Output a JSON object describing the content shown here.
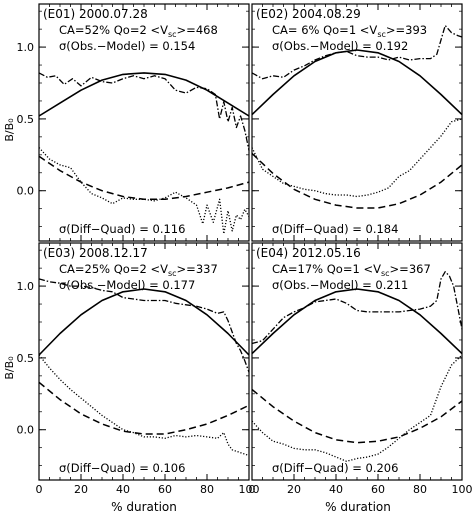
{
  "figure": {
    "ylabel": "B/B₀",
    "xlabel": "% duration",
    "x_ticks": [
      "0",
      "20",
      "40",
      "60",
      "80",
      "100"
    ],
    "y_ticks": [
      "0.0",
      "0.5",
      "1.0"
    ]
  },
  "panels": [
    {
      "event_id": "(E01)",
      "date": "2000.07.28",
      "ca": "CA=52%",
      "qo": "Qo=2",
      "vsc_prefix": "<V",
      "vsc_sub": "sc",
      "vsc_value": ">=468",
      "sigma_obs_label": "σ(Obs.−Model) = 0.154",
      "sigma_diff_label": "σ(Diff−Quad) = 0.116"
    },
    {
      "event_id": "(E02)",
      "date": "2004.08.29",
      "ca": "CA= 6%",
      "qo": "Qo=1",
      "vsc_prefix": "<V",
      "vsc_sub": "sc",
      "vsc_value": ">=393",
      "sigma_obs_label": "σ(Obs.−Model) = 0.192",
      "sigma_diff_label": "σ(Diff−Quad) = 0.184"
    },
    {
      "event_id": "(E03)",
      "date": "2008.12.17",
      "ca": "CA=25%",
      "qo": "Qo=2",
      "vsc_prefix": "<V",
      "vsc_sub": "sc",
      "vsc_value": ">=337",
      "sigma_obs_label": "σ(Obs.−Model) = 0.177",
      "sigma_diff_label": "σ(Diff−Quad) = 0.106"
    },
    {
      "event_id": "(E04)",
      "date": "2012.05.16",
      "ca": "CA=17%",
      "qo": "Qo=1",
      "vsc_prefix": "<V",
      "vsc_sub": "sc",
      "vsc_value": ">=367",
      "sigma_obs_label": "σ(Obs.−Model) = 0.211",
      "sigma_diff_label": "σ(Diff−Quad) = 0.206"
    }
  ],
  "chart_data": {
    "type": "line",
    "xlim": [
      0,
      100
    ],
    "ylim": [
      -0.35,
      1.3
    ],
    "panels": [
      {
        "model_solid": {
          "x": [
            0,
            10,
            20,
            30,
            40,
            50,
            60,
            70,
            80,
            90,
            100
          ],
          "y": [
            0.52,
            0.61,
            0.7,
            0.77,
            0.81,
            0.82,
            0.81,
            0.77,
            0.7,
            0.61,
            0.52
          ]
        },
        "obs_dashdot": {
          "x": [
            0,
            4,
            8,
            12,
            16,
            20,
            25,
            30,
            35,
            40,
            45,
            50,
            55,
            60,
            65,
            70,
            75,
            80,
            84,
            86,
            88,
            90,
            92,
            94,
            96,
            98,
            100
          ],
          "y": [
            0.82,
            0.79,
            0.8,
            0.74,
            0.78,
            0.73,
            0.79,
            0.76,
            0.75,
            0.78,
            0.8,
            0.78,
            0.8,
            0.78,
            0.7,
            0.68,
            0.72,
            0.71,
            0.67,
            0.5,
            0.62,
            0.48,
            0.58,
            0.44,
            0.52,
            0.42,
            0.28
          ]
        },
        "diff_dotted": {
          "x": [
            0,
            5,
            10,
            15,
            20,
            25,
            30,
            35,
            40,
            45,
            50,
            55,
            60,
            65,
            70,
            75,
            78,
            80,
            83,
            86,
            88,
            90,
            92,
            94,
            96,
            98,
            100
          ],
          "y": [
            0.3,
            0.22,
            0.18,
            0.16,
            0.06,
            -0.02,
            -0.05,
            -0.09,
            -0.05,
            -0.06,
            -0.06,
            -0.07,
            -0.05,
            -0.01,
            -0.05,
            -0.1,
            -0.23,
            -0.1,
            -0.22,
            -0.06,
            -0.3,
            -0.14,
            -0.28,
            -0.17,
            -0.2,
            -0.13,
            -0.18
          ]
        },
        "quad_dashed": {
          "x": [
            0,
            10,
            20,
            30,
            40,
            50,
            60,
            70,
            80,
            90,
            100
          ],
          "y": [
            0.24,
            0.14,
            0.06,
            0.0,
            -0.04,
            -0.06,
            -0.06,
            -0.04,
            -0.01,
            0.02,
            0.06
          ]
        }
      },
      {
        "model_solid": {
          "x": [
            0,
            10,
            20,
            30,
            40,
            50,
            60,
            70,
            80,
            90,
            100
          ],
          "y": [
            0.53,
            0.67,
            0.8,
            0.9,
            0.96,
            0.98,
            0.96,
            0.9,
            0.8,
            0.67,
            0.53
          ]
        },
        "obs_dashdot": {
          "x": [
            0,
            5,
            10,
            15,
            20,
            25,
            30,
            35,
            40,
            45,
            50,
            55,
            60,
            65,
            70,
            75,
            80,
            85,
            88,
            90,
            92,
            95,
            98,
            100
          ],
          "y": [
            0.82,
            0.78,
            0.8,
            0.79,
            0.84,
            0.87,
            0.91,
            0.94,
            0.96,
            0.97,
            0.94,
            0.93,
            0.93,
            0.91,
            0.93,
            0.91,
            0.92,
            0.92,
            0.95,
            1.05,
            1.15,
            1.1,
            1.08,
            1.07
          ]
        },
        "diff_dotted": {
          "x": [
            0,
            5,
            10,
            15,
            20,
            25,
            30,
            35,
            40,
            45,
            50,
            55,
            60,
            65,
            70,
            75,
            80,
            85,
            90,
            95,
            100
          ],
          "y": [
            0.3,
            0.15,
            0.1,
            0.05,
            0.03,
            0.01,
            0.0,
            -0.02,
            -0.03,
            -0.03,
            -0.04,
            -0.03,
            -0.01,
            0.02,
            0.1,
            0.14,
            0.22,
            0.3,
            0.38,
            0.48,
            0.5
          ]
        },
        "quad_dashed": {
          "x": [
            0,
            10,
            20,
            30,
            40,
            50,
            60,
            70,
            80,
            90,
            100
          ],
          "y": [
            0.26,
            0.12,
            0.01,
            -0.06,
            -0.1,
            -0.12,
            -0.12,
            -0.09,
            -0.03,
            0.06,
            0.18
          ]
        }
      },
      {
        "model_solid": {
          "x": [
            0,
            10,
            20,
            30,
            40,
            50,
            60,
            70,
            80,
            90,
            100
          ],
          "y": [
            0.52,
            0.67,
            0.8,
            0.9,
            0.96,
            0.98,
            0.96,
            0.9,
            0.8,
            0.67,
            0.52
          ]
        },
        "obs_dashdot": {
          "x": [
            0,
            5,
            10,
            15,
            20,
            25,
            30,
            35,
            40,
            45,
            50,
            55,
            60,
            65,
            70,
            75,
            80,
            85,
            88,
            90,
            92,
            94,
            96,
            98,
            100
          ],
          "y": [
            1.05,
            1.03,
            1.02,
            1.0,
            1.0,
            0.99,
            0.97,
            0.96,
            0.92,
            0.91,
            0.9,
            0.9,
            0.9,
            0.88,
            0.87,
            0.86,
            0.84,
            0.81,
            0.82,
            0.76,
            0.68,
            0.6,
            0.55,
            0.48,
            0.4
          ]
        },
        "diff_dotted": {
          "x": [
            0,
            5,
            10,
            15,
            20,
            25,
            30,
            35,
            40,
            45,
            50,
            55,
            60,
            65,
            70,
            75,
            80,
            85,
            88,
            90,
            92,
            94,
            96,
            98,
            100
          ],
          "y": [
            0.52,
            0.43,
            0.35,
            0.28,
            0.22,
            0.16,
            0.1,
            0.05,
            0.0,
            -0.02,
            -0.05,
            -0.05,
            -0.06,
            -0.04,
            -0.05,
            -0.04,
            -0.05,
            -0.06,
            -0.02,
            -0.1,
            -0.14,
            -0.15,
            -0.16,
            -0.17,
            -0.18
          ]
        },
        "quad_dashed": {
          "x": [
            0,
            10,
            20,
            30,
            40,
            50,
            60,
            70,
            80,
            90,
            100
          ],
          "y": [
            0.33,
            0.21,
            0.11,
            0.04,
            -0.01,
            -0.03,
            -0.03,
            0.0,
            0.04,
            0.1,
            0.17
          ]
        }
      },
      {
        "model_solid": {
          "x": [
            0,
            10,
            20,
            30,
            40,
            50,
            60,
            70,
            80,
            90,
            100
          ],
          "y": [
            0.53,
            0.67,
            0.8,
            0.9,
            0.96,
            0.98,
            0.96,
            0.9,
            0.8,
            0.67,
            0.53
          ]
        },
        "obs_dashdot": {
          "x": [
            0,
            5,
            10,
            15,
            20,
            25,
            30,
            35,
            40,
            45,
            50,
            55,
            60,
            65,
            70,
            75,
            80,
            85,
            88,
            90,
            92,
            94,
            96,
            98,
            100
          ],
          "y": [
            0.6,
            0.62,
            0.7,
            0.78,
            0.82,
            0.85,
            0.89,
            0.9,
            0.91,
            0.88,
            0.83,
            0.82,
            0.82,
            0.82,
            0.82,
            0.83,
            0.84,
            0.86,
            0.9,
            1.05,
            1.1,
            1.07,
            1.0,
            0.85,
            0.7
          ]
        },
        "diff_dotted": {
          "x": [
            0,
            5,
            10,
            15,
            20,
            25,
            30,
            35,
            40,
            45,
            50,
            55,
            60,
            65,
            70,
            75,
            80,
            85,
            90,
            95,
            100
          ],
          "y": [
            0.06,
            -0.02,
            -0.08,
            -0.1,
            -0.13,
            -0.14,
            -0.14,
            -0.16,
            -0.19,
            -0.22,
            -0.2,
            -0.19,
            -0.17,
            -0.12,
            -0.06,
            0.0,
            0.05,
            0.1,
            0.3,
            0.45,
            0.52
          ]
        },
        "quad_dashed": {
          "x": [
            0,
            10,
            20,
            30,
            40,
            50,
            60,
            70,
            80,
            90,
            100
          ],
          "y": [
            0.28,
            0.16,
            0.06,
            -0.02,
            -0.07,
            -0.09,
            -0.08,
            -0.05,
            0.01,
            0.09,
            0.2
          ]
        }
      }
    ]
  }
}
